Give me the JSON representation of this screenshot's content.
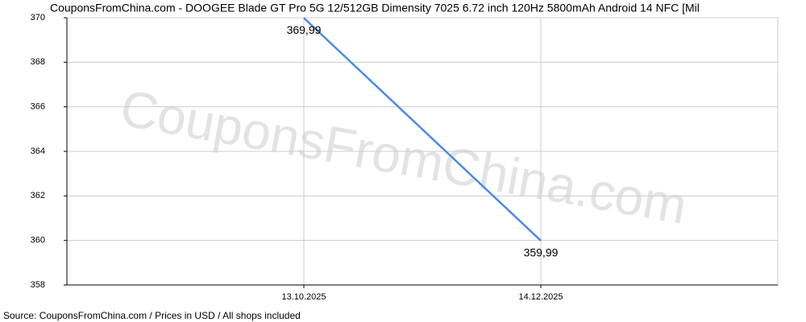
{
  "chart_data": {
    "type": "line",
    "title": "CouponsFromChina.com - DOOGEE Blade GT Pro 5G 12/512GB Dimensity 7025 6.72 inch 120Hz 5800mAh Android 14 NFC [Mil",
    "watermark": "CouponsFromChina.com",
    "source": "Source: CouponsFromChina.com / Prices in USD / All shops included",
    "categories": [
      "13.10.2025",
      "14.12.2025"
    ],
    "series": [
      {
        "name": "Price",
        "color": "#4a8ae6",
        "values": [
          369.99,
          359.99
        ],
        "value_labels": [
          "369,99",
          "359,99"
        ]
      }
    ],
    "ylim": [
      358,
      370
    ],
    "yticks": [
      358,
      360,
      362,
      364,
      366,
      368,
      370
    ],
    "grid": true
  }
}
